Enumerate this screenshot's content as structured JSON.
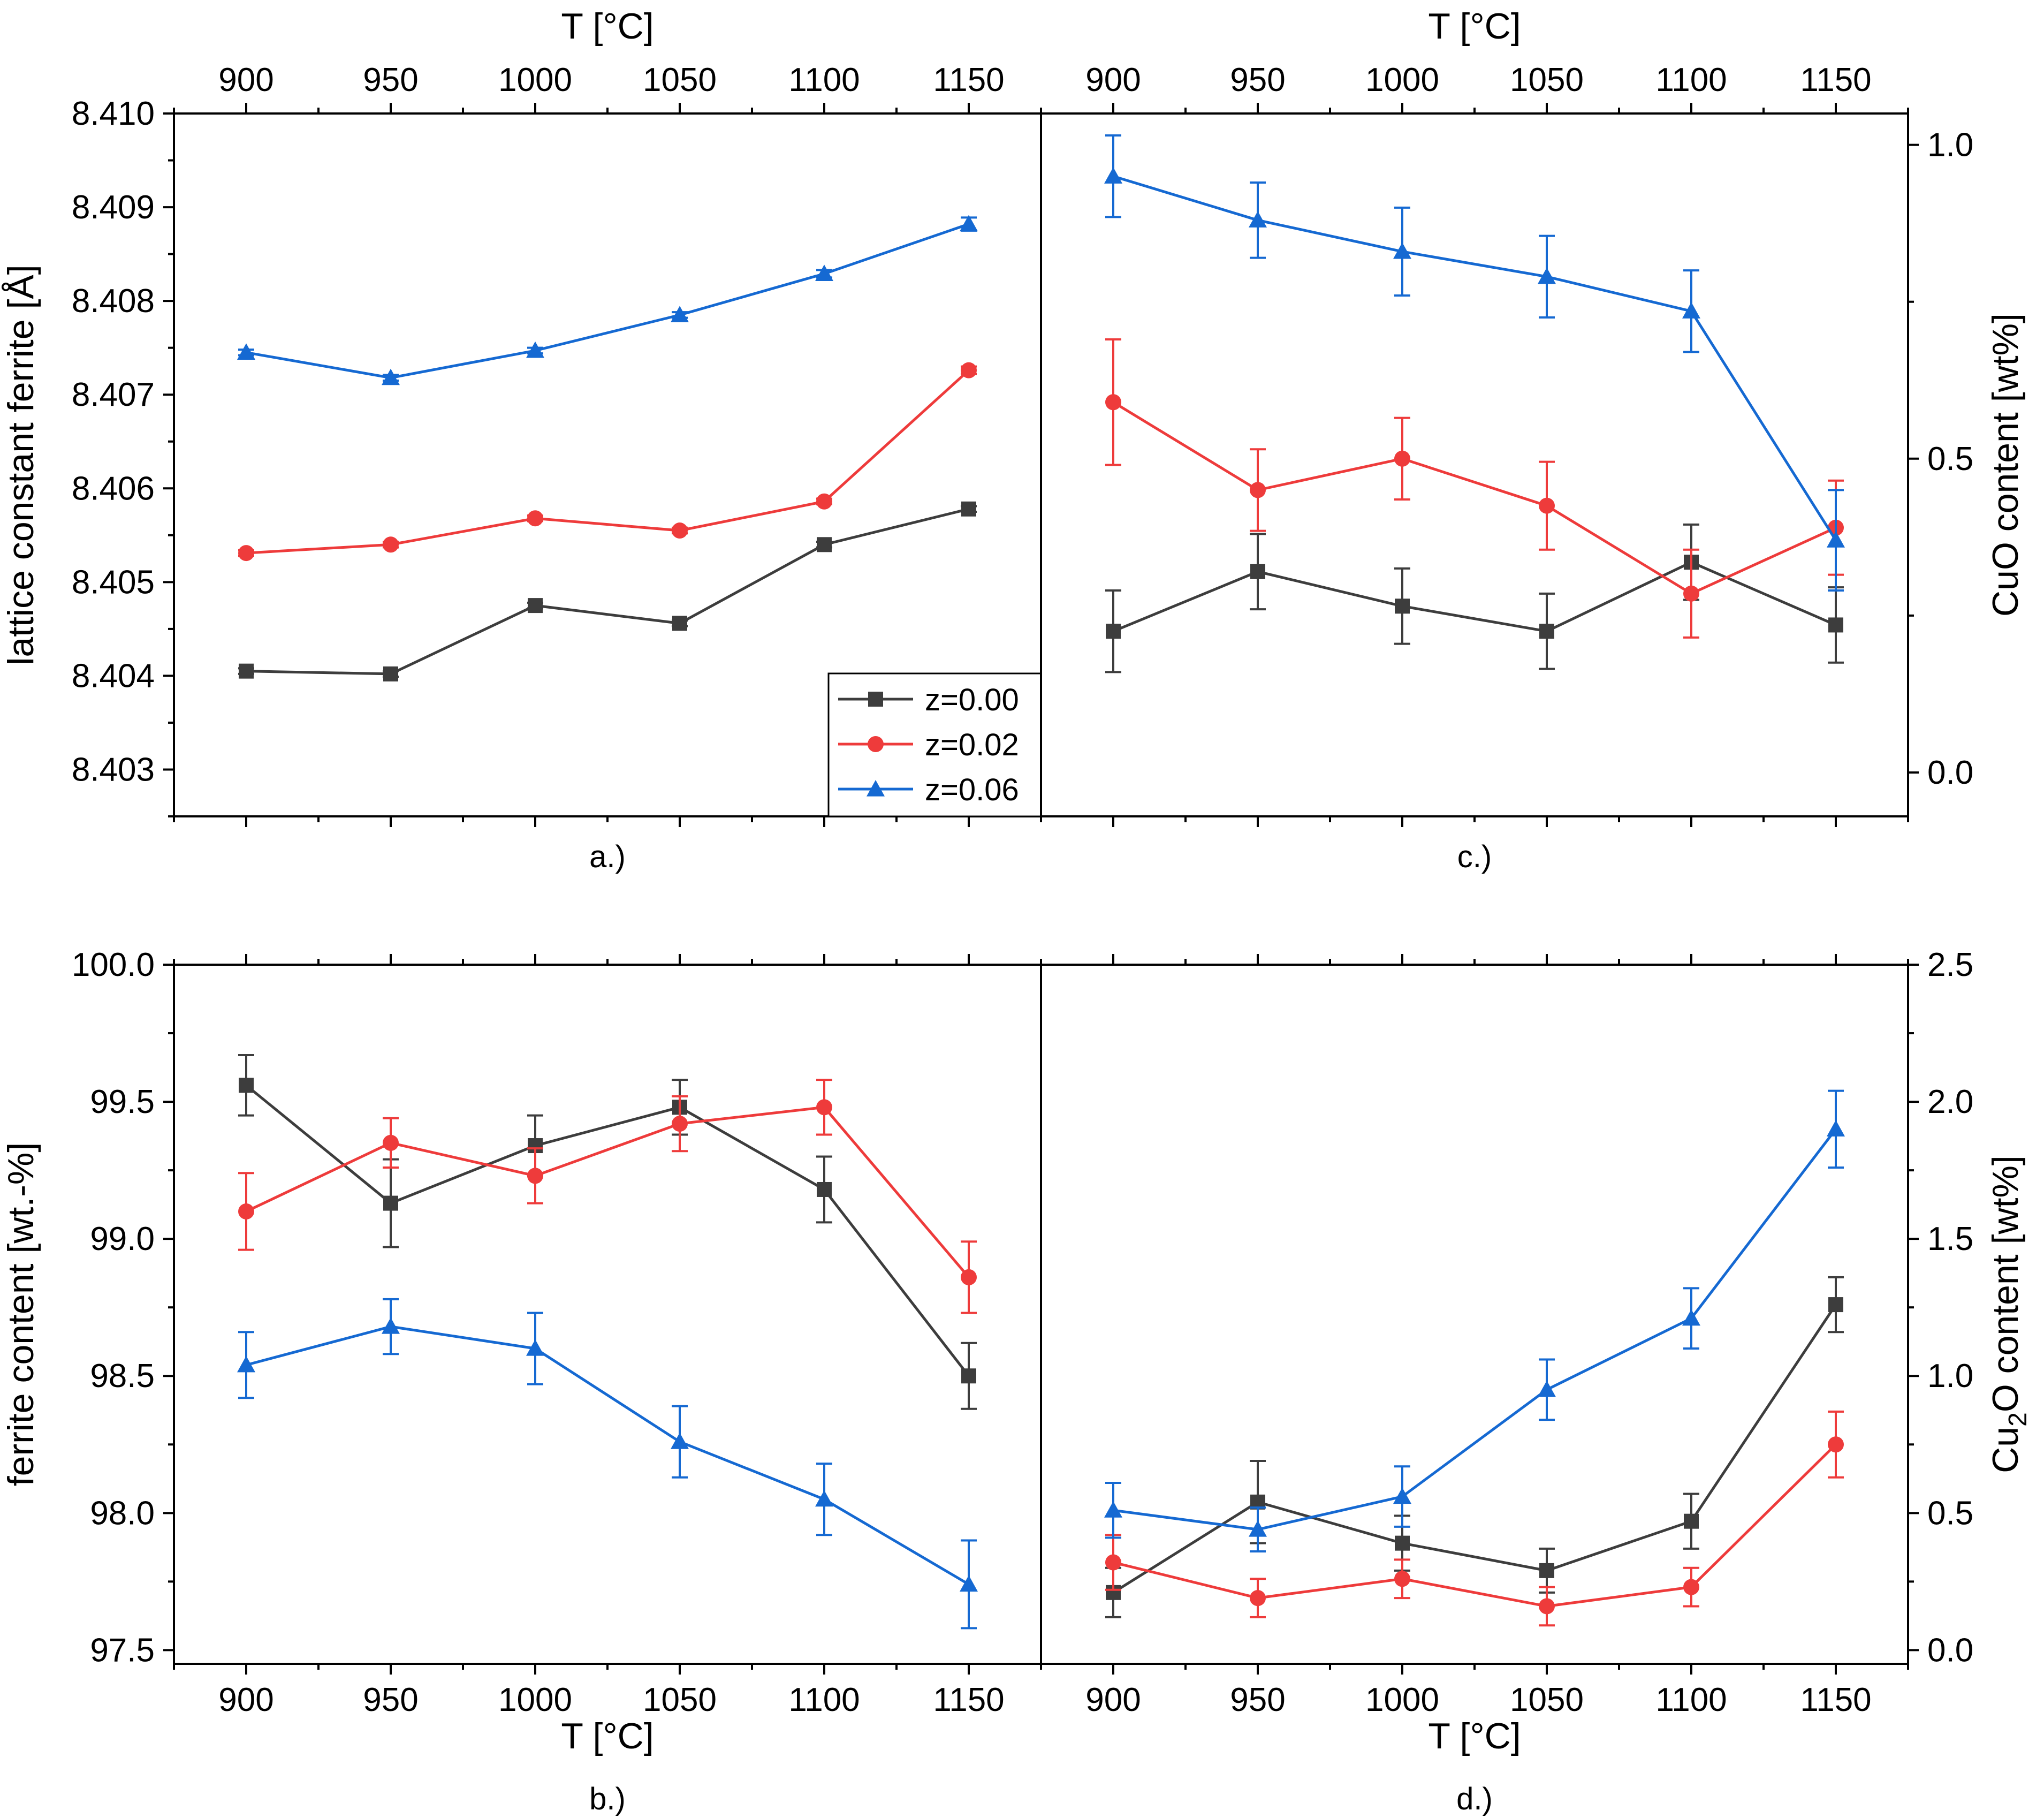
{
  "colors": {
    "z000": "#3d3d3d",
    "z002": "#ee3b3b",
    "z006": "#1569d2"
  },
  "chart_data": [
    {
      "id": "a",
      "type": "line",
      "panel_label": "a.)",
      "xlabel_top": "T [°C]",
      "ylabel": "lattice constant ferrite [Å]",
      "x": [
        900,
        950,
        1000,
        1050,
        1100,
        1150
      ],
      "xlim": [
        875,
        1175
      ],
      "xticks": [
        "900",
        "950",
        "1000",
        "1050",
        "1100",
        "1150"
      ],
      "ylim": [
        8.4025,
        8.41
      ],
      "yticks": [
        "8.403",
        "8.404",
        "8.405",
        "8.406",
        "8.407",
        "8.408",
        "8.409",
        "8.410"
      ],
      "legend": {
        "position": "bottom-right",
        "entries": [
          "z=0.00",
          "z=0.02",
          "z=0.06"
        ]
      },
      "series": [
        {
          "name": "z=0.00",
          "marker": "square",
          "color": "#3d3d3d",
          "values": [
            8.40405,
            8.40402,
            8.40475,
            8.40456,
            8.4054,
            8.40578
          ],
          "err": [
            3e-05,
            3e-05,
            3e-05,
            3e-05,
            3e-05,
            3e-05
          ]
        },
        {
          "name": "z=0.02",
          "marker": "circle",
          "color": "#ee3b3b",
          "values": [
            8.40531,
            8.4054,
            8.40568,
            8.40555,
            8.40586,
            8.40726
          ],
          "err": [
            3e-05,
            3e-05,
            3e-05,
            3e-05,
            3e-05,
            4e-05
          ]
        },
        {
          "name": "z=0.06",
          "marker": "triangle",
          "color": "#1569d2",
          "values": [
            8.40745,
            8.40718,
            8.40747,
            8.40785,
            8.40829,
            8.40882
          ],
          "err": [
            3e-05,
            3e-05,
            3e-05,
            3e-05,
            4e-05,
            7e-05
          ]
        }
      ]
    },
    {
      "id": "c",
      "type": "line",
      "panel_label": "c.)",
      "xlabel_top": "T [°C]",
      "ylabel": "CuO content [wt%]",
      "x": [
        900,
        950,
        1000,
        1050,
        1100,
        1150
      ],
      "xlim": [
        875,
        1175
      ],
      "xticks": [
        "900",
        "950",
        "1000",
        "1050",
        "1100",
        "1150"
      ],
      "ylim": [
        -0.07,
        1.05
      ],
      "yticks": [
        "0.0",
        "0.5",
        "1.0"
      ],
      "series": [
        {
          "name": "z=0.00",
          "marker": "square",
          "color": "#3d3d3d",
          "values": [
            0.225,
            0.32,
            0.265,
            0.225,
            0.335,
            0.235
          ],
          "err": [
            0.065,
            0.06,
            0.06,
            0.06,
            0.06,
            0.06
          ]
        },
        {
          "name": "z=0.02",
          "marker": "circle",
          "color": "#ee3b3b",
          "values": [
            0.59,
            0.45,
            0.5,
            0.425,
            0.285,
            0.39
          ],
          "err": [
            0.1,
            0.065,
            0.065,
            0.07,
            0.07,
            0.075
          ]
        },
        {
          "name": "z=0.06",
          "marker": "triangle",
          "color": "#1569d2",
          "values": [
            0.95,
            0.88,
            0.83,
            0.79,
            0.735,
            0.37
          ],
          "err": [
            0.065,
            0.06,
            0.07,
            0.065,
            0.065,
            0.08
          ]
        }
      ]
    },
    {
      "id": "b",
      "type": "line",
      "panel_label": "b.)",
      "xlabel": "T [°C]",
      "ylabel": "ferrite content [wt.-%]",
      "x": [
        900,
        950,
        1000,
        1050,
        1100,
        1150
      ],
      "xlim": [
        875,
        1175
      ],
      "xticks": [
        "900",
        "950",
        "1000",
        "1050",
        "1100",
        "1150"
      ],
      "ylim": [
        97.45,
        100.0
      ],
      "yticks": [
        "97.5",
        "98.0",
        "98.5",
        "99.0",
        "99.5",
        "100.0"
      ],
      "series": [
        {
          "name": "z=0.00",
          "marker": "square",
          "color": "#3d3d3d",
          "values": [
            99.56,
            99.13,
            99.34,
            99.48,
            99.18,
            98.5
          ],
          "err": [
            0.11,
            0.16,
            0.11,
            0.1,
            0.12,
            0.12
          ]
        },
        {
          "name": "z=0.02",
          "marker": "circle",
          "color": "#ee3b3b",
          "values": [
            99.1,
            99.35,
            99.23,
            99.42,
            99.48,
            98.86
          ],
          "err": [
            0.14,
            0.09,
            0.1,
            0.1,
            0.1,
            0.13
          ]
        },
        {
          "name": "z=0.06",
          "marker": "triangle",
          "color": "#1569d2",
          "values": [
            98.54,
            98.68,
            98.6,
            98.26,
            98.05,
            97.74
          ],
          "err": [
            0.12,
            0.1,
            0.13,
            0.13,
            0.13,
            0.16
          ]
        }
      ]
    },
    {
      "id": "d",
      "type": "line",
      "panel_label": "d.)",
      "xlabel": "T [°C]",
      "ylabel_prefix": "Cu",
      "ylabel_sub": "2",
      "ylabel_suffix": "O content [wt%]",
      "x": [
        900,
        950,
        1000,
        1050,
        1100,
        1150
      ],
      "xlim": [
        875,
        1175
      ],
      "xticks": [
        "900",
        "950",
        "1000",
        "1050",
        "1100",
        "1150"
      ],
      "ylim": [
        -0.05,
        2.5
      ],
      "yticks": [
        "0.0",
        "0.5",
        "1.0",
        "1.5",
        "2.0",
        "2.5"
      ],
      "series": [
        {
          "name": "z=0.00",
          "marker": "square",
          "color": "#3d3d3d",
          "values": [
            0.21,
            0.54,
            0.39,
            0.29,
            0.47,
            1.26
          ],
          "err": [
            0.09,
            0.15,
            0.1,
            0.08,
            0.1,
            0.1
          ]
        },
        {
          "name": "z=0.02",
          "marker": "circle",
          "color": "#ee3b3b",
          "values": [
            0.32,
            0.19,
            0.26,
            0.16,
            0.23,
            0.75
          ],
          "err": [
            0.1,
            0.07,
            0.07,
            0.07,
            0.07,
            0.12
          ]
        },
        {
          "name": "z=0.06",
          "marker": "triangle",
          "color": "#1569d2",
          "values": [
            0.51,
            0.44,
            0.56,
            0.95,
            1.21,
            1.9
          ],
          "err": [
            0.1,
            0.08,
            0.11,
            0.11,
            0.11,
            0.14
          ]
        }
      ]
    }
  ]
}
